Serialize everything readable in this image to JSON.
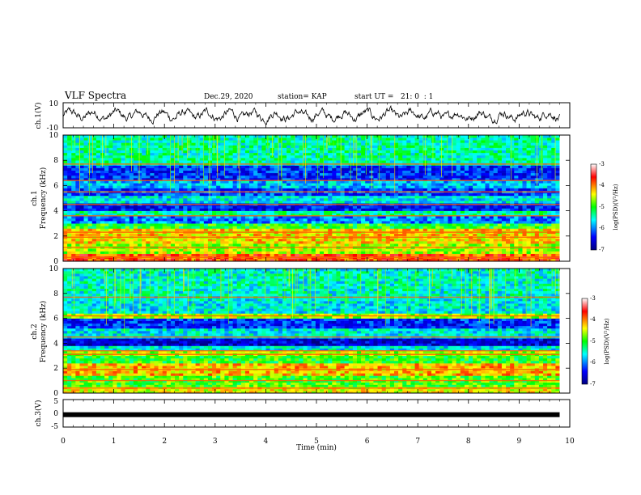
{
  "header": {
    "title": "VLF Spectra",
    "date": "Dec.29, 2020",
    "station": "station= KAP",
    "start": "start UT =   21: 0  : 1"
  },
  "chart_data": [
    {
      "type": "line",
      "panel": "ch1-waveform",
      "ylabel": "ch.1(V)",
      "ylim": [
        -10,
        10
      ],
      "yticks": [
        "10",
        "-10"
      ],
      "xlim": [
        0,
        10
      ],
      "x_end": 9.8,
      "signal": "noisy waveform, amplitude approx -5 to 5 V"
    },
    {
      "type": "heatmap",
      "panel": "ch1-spectrogram",
      "ylabel_line1": "ch.1",
      "ylabel_line2": "Frequency (kHz)",
      "ylim": [
        0,
        10
      ],
      "yticks": [
        "0",
        "2",
        "4",
        "6",
        "8",
        "10"
      ],
      "xlim": [
        0,
        10
      ],
      "x_end": 9.8,
      "colorbar": {
        "label": "log(PSD)(V²/Hz)",
        "range": [
          -7,
          -3
        ],
        "ticks": [
          "-3",
          "-4",
          "-5",
          "-6",
          "-7"
        ]
      },
      "bands": [
        {
          "f0": 0.0,
          "f1": 0.6,
          "v": -3.8
        },
        {
          "f0": 0.6,
          "f1": 1.4,
          "v": -4.6
        },
        {
          "f0": 1.4,
          "f1": 2.6,
          "v": -4.3
        },
        {
          "f0": 2.6,
          "f1": 3.0,
          "v": -5.0
        },
        {
          "f0": 3.0,
          "f1": 3.6,
          "v": -6.0
        },
        {
          "f0": 3.6,
          "f1": 4.0,
          "v": -5.4
        },
        {
          "f0": 4.0,
          "f1": 4.6,
          "v": -6.4
        },
        {
          "f0": 4.6,
          "f1": 5.2,
          "v": -5.6
        },
        {
          "f0": 5.2,
          "f1": 5.8,
          "v": -6.2
        },
        {
          "f0": 5.8,
          "f1": 6.4,
          "v": -5.8
        },
        {
          "f0": 6.4,
          "f1": 7.6,
          "v": -6.3
        },
        {
          "f0": 7.6,
          "f1": 10.0,
          "v": -5.4
        }
      ],
      "lines_khz": [
        0.3,
        1.1,
        1.9,
        2.3,
        3.6,
        4.5,
        5.5,
        6.4,
        7.7
      ]
    },
    {
      "type": "heatmap",
      "panel": "ch2-spectrogram",
      "ylabel_line1": "ch.2",
      "ylabel_line2": "Frequency (kHz)",
      "ylim": [
        0,
        10
      ],
      "yticks": [
        "0",
        "2",
        "4",
        "6",
        "8",
        "10"
      ],
      "xlim": [
        0,
        10
      ],
      "x_end": 9.8,
      "colorbar": {
        "label": "log(PSD)(V²/Hz)",
        "range": [
          -7,
          -3
        ],
        "ticks": [
          "-3",
          "-4",
          "-5",
          "-6",
          "-7"
        ]
      },
      "bands": [
        {
          "f0": 0.0,
          "f1": 0.5,
          "v": -4.4
        },
        {
          "f0": 0.5,
          "f1": 1.4,
          "v": -4.9
        },
        {
          "f0": 1.4,
          "f1": 2.4,
          "v": -4.2
        },
        {
          "f0": 2.4,
          "f1": 3.0,
          "v": -5.0
        },
        {
          "f0": 3.0,
          "f1": 3.4,
          "v": -4.6
        },
        {
          "f0": 3.4,
          "f1": 3.8,
          "v": -5.6
        },
        {
          "f0": 3.8,
          "f1": 4.4,
          "v": -6.6
        },
        {
          "f0": 4.4,
          "f1": 5.2,
          "v": -5.6
        },
        {
          "f0": 5.2,
          "f1": 6.0,
          "v": -6.3
        },
        {
          "f0": 6.0,
          "f1": 6.4,
          "v": -4.6
        },
        {
          "f0": 6.4,
          "f1": 7.6,
          "v": -5.6
        },
        {
          "f0": 7.6,
          "f1": 10.0,
          "v": -5.5
        }
      ],
      "lines_khz": [
        0.4,
        1.0,
        1.9,
        3.1,
        3.4,
        4.5,
        6.2,
        7.7
      ]
    },
    {
      "type": "line",
      "panel": "ch3-waveform",
      "ylabel": "ch.3(V)",
      "ylim": [
        -5,
        5
      ],
      "yticks": [
        "5",
        "0",
        "-5"
      ],
      "xlim": [
        0,
        10
      ],
      "x_end": 9.8,
      "xlabel": "Time (min)",
      "xticks": [
        "0",
        "1",
        "2",
        "3",
        "4",
        "5",
        "6",
        "7",
        "8",
        "9",
        "10"
      ],
      "signal": "flat saturated trace near -0.5 V"
    }
  ]
}
